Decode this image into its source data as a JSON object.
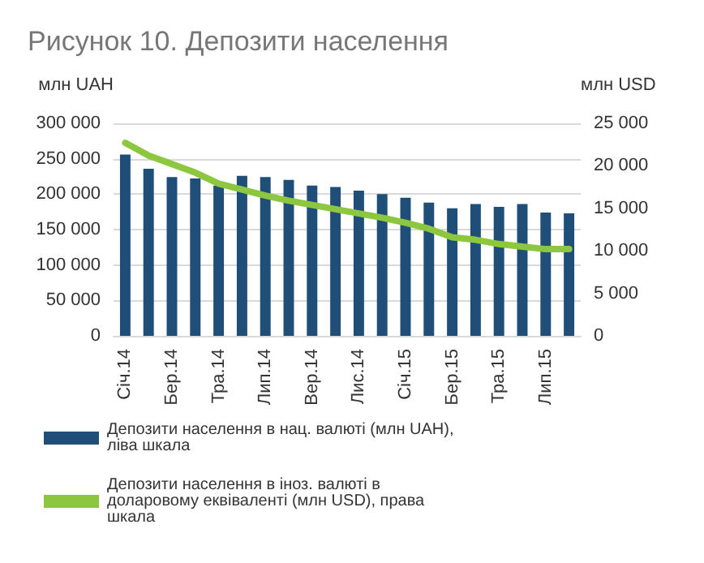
{
  "chart_data": {
    "type": "bar",
    "title": "Рисунок 10. Депозити населення",
    "ylabel": "млн UAH",
    "y2label": "млн USD",
    "categories": [
      "Січ.14",
      null,
      "Бер.14",
      null,
      "Тра.14",
      null,
      "Лип.14",
      null,
      "Вер.14",
      null,
      "Лис.14",
      null,
      "Січ.15",
      null,
      "Бер.15",
      null,
      "Тра.15",
      null,
      "Лип.15",
      null
    ],
    "series": [
      {
        "name": "Депозити населення в нац. валюті (млн UAH), ліва шкала",
        "color": "#1f4e79",
        "values": [
          256000,
          236000,
          224000,
          222000,
          212000,
          226000,
          224000,
          220000,
          212000,
          210000,
          205000,
          200000,
          195000,
          188000,
          180000,
          186000,
          182000,
          186000,
          174000,
          173000
        ]
      },
      {
        "name": "Депозити населення в іноз. валюті в доларовому еквіваленті (млн USD), права шкала",
        "type": "line",
        "axis": "y2",
        "color": "#8dc63f",
        "values": [
          22700,
          21200,
          20200,
          19200,
          17900,
          17200,
          16500,
          15900,
          15400,
          14900,
          14400,
          13900,
          13300,
          12600,
          11600,
          11300,
          10800,
          10500,
          10200,
          10200
        ]
      }
    ],
    "ylim": [
      0,
      300000
    ],
    "yticks": [
      {
        "value": 0,
        "label": "0"
      },
      {
        "value": 50000,
        "label": "50 000"
      },
      {
        "value": 100000,
        "label": "100 000"
      },
      {
        "value": 150000,
        "label": "150 000"
      },
      {
        "value": 200000,
        "label": "200 000"
      },
      {
        "value": 250000,
        "label": "250 000"
      },
      {
        "value": 300000,
        "label": "300 000"
      }
    ],
    "y2lim": [
      0,
      25000
    ],
    "y2ticks": [
      {
        "value": 0,
        "label": "0"
      },
      {
        "value": 5000,
        "label": "5 000"
      },
      {
        "value": 10000,
        "label": "10 000"
      },
      {
        "value": 15000,
        "label": "15 000"
      },
      {
        "value": 20000,
        "label": "20 000"
      },
      {
        "value": 25000,
        "label": "25 000"
      }
    ],
    "grid": "y",
    "legend": "bottom",
    "marker": "none"
  }
}
